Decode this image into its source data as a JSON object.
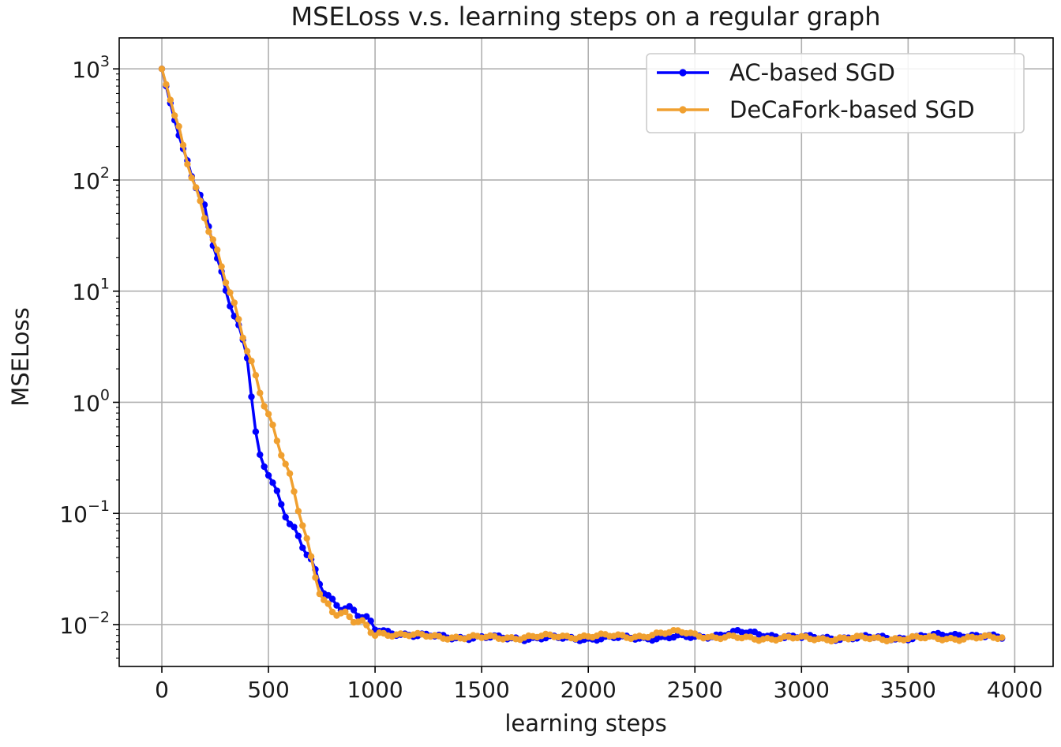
{
  "chart_data": {
    "type": "line",
    "title": "MSELoss v.s. learning steps on a regular graph",
    "xlabel": "learning steps",
    "ylabel": "MSELoss",
    "xlim": [
      -200,
      4180
    ],
    "ylim": [
      0.0042,
      1900
    ],
    "yscale": "log",
    "grid": true,
    "legend_position": "top-right",
    "x_ticks": [
      0,
      500,
      1000,
      1500,
      2000,
      2500,
      3000,
      3500,
      4000
    ],
    "x_tick_labels": [
      "0",
      "500",
      "1000",
      "1500",
      "2000",
      "2500",
      "3000",
      "3500",
      "4000"
    ],
    "y_ticks": [
      {
        "value": 1000,
        "base": "10",
        "exp": "3"
      },
      {
        "value": 100,
        "base": "10",
        "exp": "2"
      },
      {
        "value": 10,
        "base": "10",
        "exp": "1"
      },
      {
        "value": 1,
        "base": "10",
        "exp": "0"
      },
      {
        "value": 0.1,
        "base": "10",
        "exp": "−1"
      },
      {
        "value": 0.01,
        "base": "10",
        "exp": "−2"
      }
    ],
    "series": [
      {
        "name": "AC-based SGD",
        "color": "#0000ff",
        "points": [
          [
            0,
            1000
          ],
          [
            100,
            170
          ],
          [
            200,
            60
          ],
          [
            300,
            10
          ],
          [
            400,
            2.5
          ],
          [
            450,
            0.35
          ],
          [
            500,
            0.25
          ],
          [
            600,
            0.08
          ],
          [
            700,
            0.035
          ],
          [
            750,
            0.022
          ],
          [
            800,
            0.017
          ],
          [
            900,
            0.013
          ],
          [
            1000,
            0.009
          ],
          [
            1200,
            0.0079
          ],
          [
            1500,
            0.0076
          ],
          [
            2000,
            0.0075
          ],
          [
            2500,
            0.0077
          ],
          [
            2700,
            0.0085
          ],
          [
            3000,
            0.0076
          ],
          [
            3500,
            0.0076
          ],
          [
            3750,
            0.0082
          ],
          [
            3950,
            0.0075
          ]
        ]
      },
      {
        "name": "DeCaFork-based SGD",
        "color": "#f0a030",
        "points": [
          [
            0,
            1000
          ],
          [
            100,
            200
          ],
          [
            200,
            50
          ],
          [
            250,
            25
          ],
          [
            300,
            12
          ],
          [
            400,
            3
          ],
          [
            500,
            0.8
          ],
          [
            600,
            0.2
          ],
          [
            650,
            0.09
          ],
          [
            700,
            0.04
          ],
          [
            750,
            0.018
          ],
          [
            800,
            0.014
          ],
          [
            900,
            0.0105
          ],
          [
            1000,
            0.0085
          ],
          [
            1200,
            0.0079
          ],
          [
            1500,
            0.0076
          ],
          [
            2000,
            0.0079
          ],
          [
            2200,
            0.0078
          ],
          [
            2450,
            0.0086
          ],
          [
            2600,
            0.0076
          ],
          [
            3000,
            0.0075
          ],
          [
            3500,
            0.0075
          ],
          [
            3950,
            0.0076
          ]
        ]
      }
    ]
  }
}
